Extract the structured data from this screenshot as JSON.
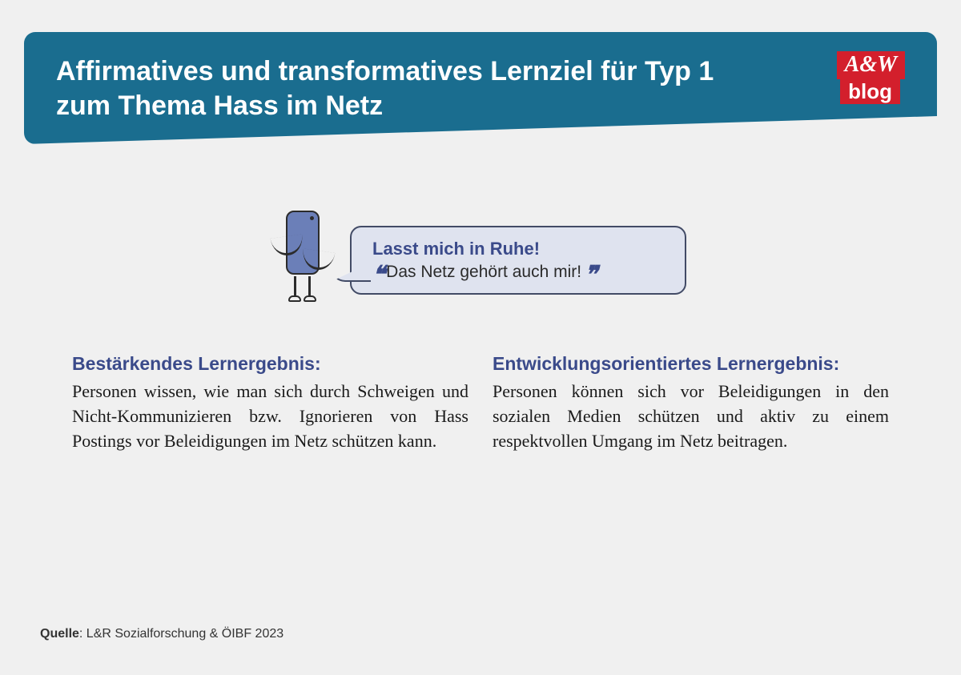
{
  "colors": {
    "page_bg": "#f0f0f0",
    "banner_bg": "#1a6d8f",
    "banner_text": "#ffffff",
    "logo_bg": "#d31f2c",
    "logo_text": "#ffffff",
    "bubble_bg": "#dfe3ef",
    "bubble_border": "#424b66",
    "accent_blue": "#3a4a8a",
    "body_text": "#1a1a1a",
    "phone_fill": "#6b7fb8",
    "character_stroke": "#2b2b2b"
  },
  "header": {
    "title_line1": "Affirmatives und transformatives Lernziel für Typ 1",
    "title_line2": "zum Thema Hass im Netz",
    "logo_top": "A&W",
    "logo_bottom": "blog"
  },
  "speech": {
    "line1": "Lasst mich in Ruhe!",
    "line2": "Das Netz gehört auch mir!",
    "quote_open": "❝",
    "quote_close": "❞"
  },
  "left_column": {
    "heading": "Bestärkendes Lernergebnis:",
    "body": "Personen wissen, wie man sich durch Schweigen und Nicht-Kommunizieren bzw. Ignorieren von Hass Postings vor Beleidigungen im Netz schützen kann."
  },
  "right_column": {
    "heading": "Entwicklungsorientiertes Lernergebnis:",
    "body": "Personen können sich vor Beleidigungen in den sozialen Medien schützen und aktiv zu einem respektvollen Umgang im Netz beitragen."
  },
  "footer": {
    "label": "Quelle",
    "text": ": L&R Sozialforschung & ÖIBF 2023"
  }
}
